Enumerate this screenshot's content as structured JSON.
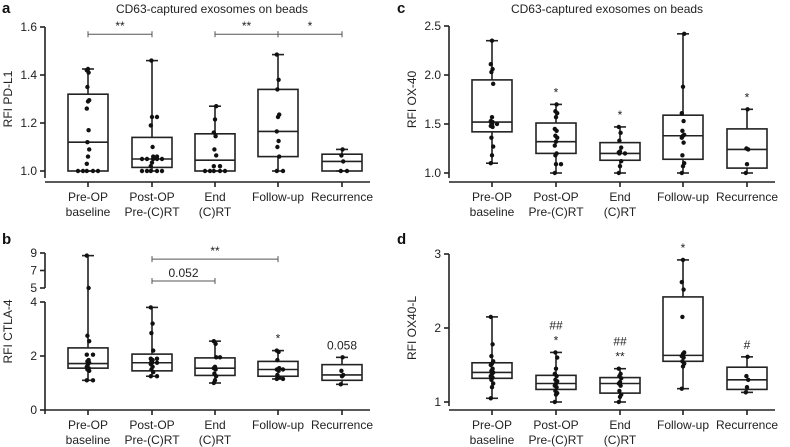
{
  "categories": [
    [
      "Pre-OP",
      "baseline"
    ],
    [
      "Post-OP",
      "Pre-(C)RT"
    ],
    [
      "End",
      "(C)RT"
    ],
    [
      "Follow-up"
    ],
    [
      "Recurrence"
    ]
  ],
  "colors": {
    "ink": "#222222",
    "bracket": "#555555"
  },
  "chart_data": [
    {
      "panel": "a",
      "type": "box",
      "title": "CD63-captured exosomes on beads",
      "ylabel": "RFI PD-L1",
      "ylim": [
        1.0,
        1.6
      ],
      "yticks": [
        "1.0",
        "1.2",
        "1.4",
        "1.6"
      ],
      "boxes": [
        {
          "min": 1.0,
          "q1": 1.0,
          "median": 1.12,
          "q3": 1.32,
          "max": 1.425,
          "points": [
            1.0,
            1.0,
            1.0,
            1.0,
            1.0,
            1.03,
            1.06,
            1.09,
            1.12,
            1.17,
            1.26,
            1.29,
            1.295,
            1.35,
            1.41,
            1.42,
            1.425
          ],
          "annot": []
        },
        {
          "min": 1.0,
          "q1": 1.015,
          "median": 1.05,
          "q3": 1.14,
          "max": 1.46,
          "points": [
            1.0,
            1.0,
            1.0,
            1.0,
            1.0,
            1.02,
            1.035,
            1.05,
            1.05,
            1.05,
            1.05,
            1.05,
            1.06,
            1.06,
            1.1,
            1.19,
            1.225,
            1.225,
            1.46
          ],
          "annot": []
        },
        {
          "min": 1.0,
          "q1": 1.0,
          "median": 1.045,
          "q3": 1.155,
          "max": 1.27,
          "points": [
            1.0,
            1.0,
            1.0,
            1.0,
            1.0,
            1.02,
            1.02,
            1.065,
            1.09,
            1.145,
            1.16,
            1.215,
            1.27
          ],
          "annot": []
        },
        {
          "min": 1.0,
          "q1": 1.06,
          "median": 1.165,
          "q3": 1.34,
          "max": 1.485,
          "points": [
            1.0,
            1.0,
            1.06,
            1.1,
            1.125,
            1.165,
            1.225,
            1.235,
            1.34,
            1.38,
            1.485
          ],
          "annot": []
        },
        {
          "min": 1.0,
          "q1": 1.0,
          "median": 1.04,
          "q3": 1.07,
          "max": 1.09,
          "points": [
            1.0,
            1.0,
            1.04,
            1.065,
            1.09
          ],
          "annot": []
        }
      ],
      "brackets": [
        {
          "from": 0,
          "to": 1,
          "y": 1.57,
          "label": "**"
        },
        {
          "from": 2,
          "to": 3,
          "y": 1.57,
          "label": "**"
        },
        {
          "from": 3,
          "to": 4,
          "y": 1.57,
          "label": "*"
        }
      ]
    },
    {
      "panel": "b",
      "type": "box",
      "title": "",
      "ylabel": "RFI CTLA-4",
      "ylim": [
        0,
        9
      ],
      "axis_break": [
        4,
        5
      ],
      "yticks": [
        "0",
        "2",
        "4",
        "5",
        "7",
        "9"
      ],
      "boxes": [
        {
          "min": 1.1,
          "q1": 1.55,
          "median": 1.72,
          "q3": 2.3,
          "max": 8.7,
          "points": [
            1.1,
            1.1,
            1.45,
            1.5,
            1.55,
            1.6,
            1.7,
            1.75,
            1.8,
            1.85,
            2.05,
            2.05,
            2.55,
            2.75,
            5.0,
            8.7
          ],
          "annot": []
        },
        {
          "min": 1.25,
          "q1": 1.45,
          "median": 1.75,
          "q3": 2.07,
          "max": 3.8,
          "points": [
            1.25,
            1.25,
            1.4,
            1.5,
            1.6,
            1.7,
            1.75,
            1.75,
            1.8,
            1.85,
            1.9,
            1.9,
            2.2,
            2.85,
            3.2,
            3.8
          ],
          "annot": []
        },
        {
          "min": 1.0,
          "q1": 1.28,
          "median": 1.55,
          "q3": 1.93,
          "max": 2.55,
          "points": [
            1.0,
            1.1,
            1.25,
            1.35,
            1.5,
            1.55,
            1.6,
            1.95,
            1.95,
            2.45,
            2.55
          ],
          "annot": []
        },
        {
          "min": 1.15,
          "q1": 1.25,
          "median": 1.5,
          "q3": 1.8,
          "max": 2.2,
          "points": [
            1.15,
            1.15,
            1.2,
            1.3,
            1.45,
            1.5,
            1.5,
            1.55,
            1.85,
            2.15,
            2.2
          ],
          "annot": [
            "*"
          ]
        },
        {
          "min": 0.95,
          "q1": 1.1,
          "median": 1.3,
          "q3": 1.68,
          "max": 1.95,
          "points": [
            0.95,
            1.25,
            1.3,
            1.45,
            1.95
          ],
          "annot": [
            "0.058"
          ]
        }
      ],
      "brackets": [
        {
          "from": 1,
          "to": 3,
          "y": 8.3,
          "label": "**"
        },
        {
          "from": 1,
          "to": 2,
          "y": 5.8,
          "label": "0.052"
        }
      ]
    },
    {
      "panel": "c",
      "type": "box",
      "title": "CD63-captured exosomes on beads",
      "ylabel": "RFI OX-40",
      "ylim": [
        1.0,
        2.5
      ],
      "yticks": [
        "1.0",
        "1.5",
        "2.0",
        "2.5"
      ],
      "boxes": [
        {
          "min": 1.1,
          "q1": 1.42,
          "median": 1.52,
          "q3": 1.95,
          "max": 2.35,
          "points": [
            1.1,
            1.18,
            1.27,
            1.36,
            1.47,
            1.48,
            1.5,
            1.5,
            1.51,
            1.52,
            1.53,
            1.57,
            1.91,
            2.03,
            2.06,
            2.11,
            2.35
          ],
          "annot": []
        },
        {
          "min": 1.0,
          "q1": 1.2,
          "median": 1.32,
          "q3": 1.51,
          "max": 1.7,
          "points": [
            1.0,
            1.09,
            1.09,
            1.18,
            1.2,
            1.28,
            1.32,
            1.36,
            1.38,
            1.43,
            1.45,
            1.57,
            1.61,
            1.63,
            1.7
          ],
          "annot": [
            "*"
          ]
        },
        {
          "min": 1.0,
          "q1": 1.13,
          "median": 1.2,
          "q3": 1.31,
          "max": 1.47,
          "points": [
            1.0,
            1.07,
            1.12,
            1.2,
            1.2,
            1.21,
            1.22,
            1.26,
            1.33,
            1.41,
            1.47
          ],
          "annot": [
            "*"
          ]
        },
        {
          "min": 1.0,
          "q1": 1.14,
          "median": 1.38,
          "q3": 1.59,
          "max": 2.42,
          "points": [
            1.0,
            1.07,
            1.1,
            1.18,
            1.31,
            1.36,
            1.38,
            1.39,
            1.43,
            1.53,
            1.61,
            1.88,
            2.42
          ],
          "annot": []
        },
        {
          "min": 1.0,
          "q1": 1.05,
          "median": 1.24,
          "q3": 1.45,
          "max": 1.65,
          "points": [
            1.0,
            1.09,
            1.24,
            1.25,
            1.65
          ],
          "annot": [
            "*"
          ]
        }
      ],
      "brackets": []
    },
    {
      "panel": "d",
      "type": "box",
      "title": "",
      "ylabel": "RFI OX40-L",
      "ylim": [
        1,
        3
      ],
      "yticks": [
        "1",
        "2",
        "3"
      ],
      "boxes": [
        {
          "min": 1.05,
          "q1": 1.32,
          "median": 1.4,
          "q3": 1.53,
          "max": 2.15,
          "points": [
            1.05,
            1.2,
            1.25,
            1.3,
            1.33,
            1.35,
            1.38,
            1.4,
            1.42,
            1.45,
            1.5,
            1.52,
            1.55,
            1.62,
            1.78,
            2.15
          ],
          "annot": []
        },
        {
          "min": 1.0,
          "q1": 1.17,
          "median": 1.25,
          "q3": 1.36,
          "max": 1.67,
          "points": [
            1.0,
            1.1,
            1.12,
            1.15,
            1.2,
            1.22,
            1.25,
            1.28,
            1.3,
            1.35,
            1.38,
            1.45,
            1.6,
            1.67
          ],
          "annot": [
            "##",
            "*"
          ]
        },
        {
          "min": 1.0,
          "q1": 1.12,
          "median": 1.25,
          "q3": 1.33,
          "max": 1.45,
          "points": [
            1.0,
            1.07,
            1.1,
            1.15,
            1.22,
            1.25,
            1.27,
            1.32,
            1.35,
            1.38,
            1.45
          ],
          "annot": [
            "##",
            "**"
          ]
        },
        {
          "min": 1.18,
          "q1": 1.55,
          "median": 1.63,
          "q3": 2.42,
          "max": 2.92,
          "points": [
            1.18,
            1.48,
            1.52,
            1.55,
            1.6,
            1.62,
            1.65,
            1.67,
            2.15,
            2.52,
            2.62,
            2.92
          ],
          "annot": [
            "*"
          ]
        },
        {
          "min": 1.13,
          "q1": 1.17,
          "median": 1.3,
          "q3": 1.47,
          "max": 1.61,
          "points": [
            1.13,
            1.2,
            1.3,
            1.35,
            1.61
          ],
          "annot": [
            "#"
          ]
        }
      ],
      "brackets": []
    }
  ]
}
